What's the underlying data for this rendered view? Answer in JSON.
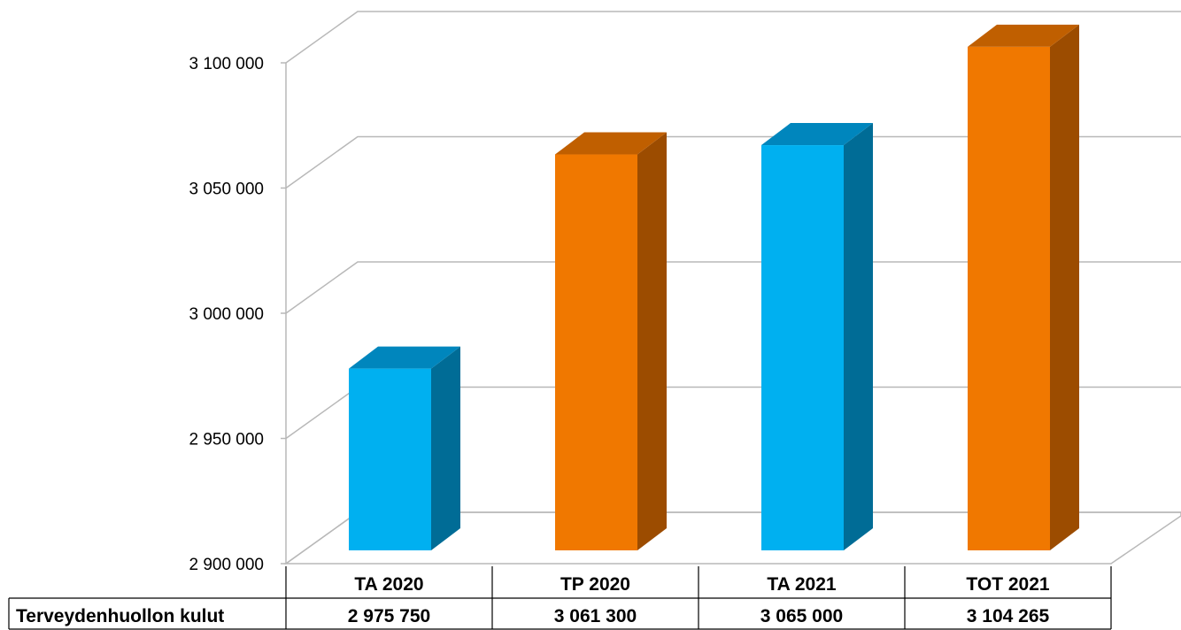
{
  "chart_data": {
    "type": "bar",
    "categories": [
      "TA 2020",
      "TP 2020",
      "TA 2021",
      "TOT 2021"
    ],
    "series": [
      {
        "name": "Terveydenhuollon kulut",
        "values": [
          2975750,
          3061300,
          3065000,
          3104265
        ]
      }
    ],
    "value_labels": [
      "2 975 750",
      "3 061 300",
      "3 065 000",
      "3 104 265"
    ],
    "y_tick_labels": [
      "2 900 000",
      "2 950 000",
      "3 000 000",
      "3 050 000",
      "3 100 000"
    ],
    "y_ticks": [
      2900000,
      2950000,
      3000000,
      3050000,
      3100000
    ],
    "ylim": [
      2900000,
      3100000
    ],
    "title": "",
    "xlabel": "",
    "ylabel": "",
    "grid": true,
    "style": "3d-column",
    "data_table": true,
    "bar_colors": [
      "#00b0f0",
      "#f07800",
      "#00b0f0",
      "#f07800"
    ],
    "bar_side_colors": [
      "#006c96",
      "#9c4c00",
      "#006c96",
      "#9c4c00"
    ],
    "bar_top_colors": [
      "#0086bd",
      "#c05f00",
      "#0086bd",
      "#c05f00"
    ]
  }
}
